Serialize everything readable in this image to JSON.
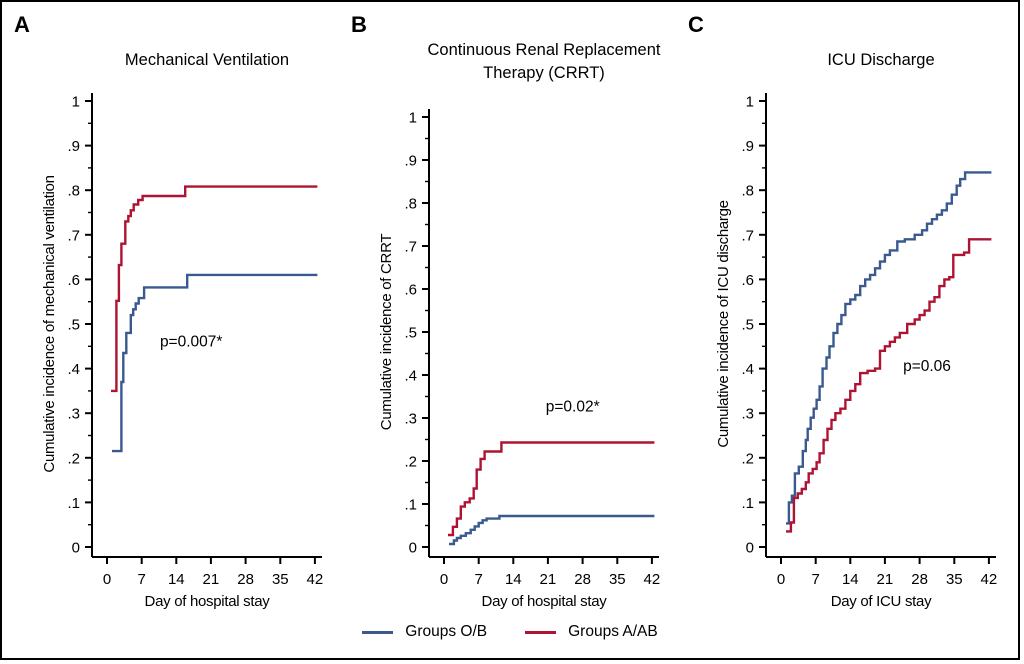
{
  "colors": {
    "group_ob": "#3a5a8f",
    "group_aab": "#ae1333",
    "axis": "#000000"
  },
  "legend": {
    "position": "bottom-center",
    "items": [
      {
        "label": "Groups O/B",
        "color_key": "group_ob"
      },
      {
        "label": "Groups A/AB",
        "color_key": "group_aab"
      }
    ]
  },
  "chart_data": [
    {
      "panel": "A",
      "type": "line",
      "step": true,
      "title": "Mechanical Ventilation",
      "title_lines": [
        "Mechanical Ventilation"
      ],
      "xlabel": "Day of hospital stay",
      "ylabel": "Cumulative incidence of mechanical ventilation",
      "annotation": "p=0.007*",
      "annotation_at": {
        "day": 17,
        "value": 0.45
      },
      "xlim": [
        0,
        42
      ],
      "ylim": [
        0,
        1
      ],
      "xticks": [
        0,
        7,
        14,
        21,
        28,
        35,
        42
      ],
      "ytick_labels": [
        "0",
        ".1",
        ".2",
        ".3",
        ".4",
        ".5",
        ".6",
        ".7",
        ".8",
        ".9",
        "1"
      ],
      "grid": false,
      "series": [
        {
          "name": "Groups A/AB",
          "color_key": "group_aab",
          "step_points": [
            [
              0.8,
              0.35
            ],
            [
              1.9,
              0.552
            ],
            [
              2.4,
              0.632
            ],
            [
              2.9,
              0.68
            ],
            [
              3.7,
              0.73
            ],
            [
              4.3,
              0.742
            ],
            [
              4.8,
              0.755
            ],
            [
              5.4,
              0.768
            ],
            [
              6.3,
              0.778
            ],
            [
              7.2,
              0.787
            ],
            [
              15.8,
              0.808
            ],
            [
              42.5,
              0.808
            ]
          ]
        },
        {
          "name": "Groups O/B",
          "color_key": "group_ob",
          "step_points": [
            [
              1.0,
              0.215
            ],
            [
              2.9,
              0.37
            ],
            [
              3.3,
              0.435
            ],
            [
              3.9,
              0.48
            ],
            [
              4.8,
              0.52
            ],
            [
              5.3,
              0.533
            ],
            [
              5.8,
              0.546
            ],
            [
              6.4,
              0.558
            ],
            [
              7.5,
              0.582
            ],
            [
              16.2,
              0.61
            ],
            [
              42.5,
              0.61
            ]
          ]
        }
      ]
    },
    {
      "panel": "B",
      "type": "line",
      "step": true,
      "title": "Continuous Renal Replacement Therapy (CRRT)",
      "title_lines": [
        "Continuous Renal Replacement",
        "Therapy (CRRT)"
      ],
      "xlabel": "Day of hospital stay",
      "ylabel": "Cumulative incidence of CRRT",
      "annotation": "p=0.02*",
      "annotation_at": {
        "day": 26,
        "value": 0.315
      },
      "xlim": [
        0,
        42
      ],
      "ylim": [
        0,
        1
      ],
      "xticks": [
        0,
        7,
        14,
        21,
        28,
        35,
        42
      ],
      "ytick_labels": [
        "0",
        ".1",
        ".2",
        ".3",
        ".4",
        ".5",
        ".6",
        ".7",
        ".8",
        ".9",
        "1"
      ],
      "grid": false,
      "series": [
        {
          "name": "Groups A/AB",
          "color_key": "group_aab",
          "step_points": [
            [
              0.8,
              0.028
            ],
            [
              1.8,
              0.047
            ],
            [
              2.6,
              0.066
            ],
            [
              3.4,
              0.094
            ],
            [
              4.2,
              0.104
            ],
            [
              5.2,
              0.113
            ],
            [
              6.0,
              0.136
            ],
            [
              6.6,
              0.18
            ],
            [
              7.4,
              0.205
            ],
            [
              8.2,
              0.222
            ],
            [
              11.6,
              0.243
            ],
            [
              42.5,
              0.243
            ]
          ]
        },
        {
          "name": "Groups O/B",
          "color_key": "group_ob",
          "step_points": [
            [
              1.0,
              0.007
            ],
            [
              2.0,
              0.015
            ],
            [
              2.6,
              0.021
            ],
            [
              3.4,
              0.026
            ],
            [
              4.4,
              0.032
            ],
            [
              5.4,
              0.04
            ],
            [
              6.2,
              0.048
            ],
            [
              7.0,
              0.056
            ],
            [
              7.8,
              0.062
            ],
            [
              8.6,
              0.066
            ],
            [
              11.2,
              0.072
            ],
            [
              42.5,
              0.072
            ]
          ]
        }
      ]
    },
    {
      "panel": "C",
      "type": "line",
      "step": true,
      "title": "ICU Discharge",
      "title_lines": [
        "ICU Discharge"
      ],
      "xlabel": "Day of ICU stay",
      "ylabel": "Cumulative incidence of ICU discharge",
      "annotation": "p=0.06",
      "annotation_at": {
        "day": 29.5,
        "value": 0.395
      },
      "xlim": [
        0,
        42
      ],
      "ylim": [
        0,
        1
      ],
      "xticks": [
        0,
        7,
        14,
        21,
        28,
        35,
        42
      ],
      "ytick_labels": [
        "0",
        ".1",
        ".2",
        ".3",
        ".4",
        ".5",
        ".6",
        ".7",
        ".8",
        ".9",
        "1"
      ],
      "grid": false,
      "series": [
        {
          "name": "Groups O/B",
          "color_key": "group_ob",
          "step_points": [
            [
              1,
              0.053
            ],
            [
              1.6,
              0.1
            ],
            [
              2.2,
              0.115
            ],
            [
              2.8,
              0.165
            ],
            [
              3.6,
              0.18
            ],
            [
              4.4,
              0.215
            ],
            [
              5,
              0.24
            ],
            [
              5.4,
              0.265
            ],
            [
              6,
              0.29
            ],
            [
              6.6,
              0.31
            ],
            [
              7.2,
              0.33
            ],
            [
              7.8,
              0.36
            ],
            [
              8.4,
              0.4
            ],
            [
              9.2,
              0.425
            ],
            [
              9.8,
              0.45
            ],
            [
              10.6,
              0.48
            ],
            [
              11.4,
              0.5
            ],
            [
              12.2,
              0.52
            ],
            [
              13,
              0.545
            ],
            [
              14,
              0.555
            ],
            [
              15,
              0.565
            ],
            [
              16,
              0.585
            ],
            [
              17,
              0.6
            ],
            [
              18,
              0.61
            ],
            [
              19,
              0.625
            ],
            [
              20,
              0.64
            ],
            [
              21,
              0.655
            ],
            [
              22,
              0.665
            ],
            [
              23.5,
              0.685
            ],
            [
              25,
              0.69
            ],
            [
              27,
              0.7
            ],
            [
              28.5,
              0.71
            ],
            [
              29.5,
              0.725
            ],
            [
              30.5,
              0.735
            ],
            [
              31.5,
              0.745
            ],
            [
              32.5,
              0.755
            ],
            [
              33.5,
              0.77
            ],
            [
              34.5,
              0.79
            ],
            [
              35.5,
              0.81
            ],
            [
              36.2,
              0.825
            ],
            [
              37.2,
              0.84
            ],
            [
              42.5,
              0.84
            ]
          ]
        },
        {
          "name": "Groups A/AB",
          "color_key": "group_aab",
          "step_points": [
            [
              1,
              0.035
            ],
            [
              2,
              0.055
            ],
            [
              2.6,
              0.11
            ],
            [
              3.4,
              0.12
            ],
            [
              4.2,
              0.13
            ],
            [
              5,
              0.145
            ],
            [
              5.6,
              0.165
            ],
            [
              6.4,
              0.175
            ],
            [
              7.2,
              0.19
            ],
            [
              7.8,
              0.21
            ],
            [
              8.6,
              0.24
            ],
            [
              9.4,
              0.265
            ],
            [
              10.2,
              0.285
            ],
            [
              11,
              0.3
            ],
            [
              12,
              0.31
            ],
            [
              13,
              0.33
            ],
            [
              14,
              0.35
            ],
            [
              15,
              0.365
            ],
            [
              16,
              0.39
            ],
            [
              17.5,
              0.395
            ],
            [
              19,
              0.4
            ],
            [
              20,
              0.44
            ],
            [
              21,
              0.45
            ],
            [
              22,
              0.46
            ],
            [
              23,
              0.47
            ],
            [
              24,
              0.48
            ],
            [
              25.5,
              0.5
            ],
            [
              27,
              0.51
            ],
            [
              28,
              0.52
            ],
            [
              29,
              0.53
            ],
            [
              30,
              0.55
            ],
            [
              31,
              0.56
            ],
            [
              32,
              0.585
            ],
            [
              33,
              0.6
            ],
            [
              34,
              0.605
            ],
            [
              34.8,
              0.655
            ],
            [
              37,
              0.66
            ],
            [
              38,
              0.69
            ],
            [
              42.5,
              0.69
            ]
          ]
        }
      ]
    }
  ]
}
